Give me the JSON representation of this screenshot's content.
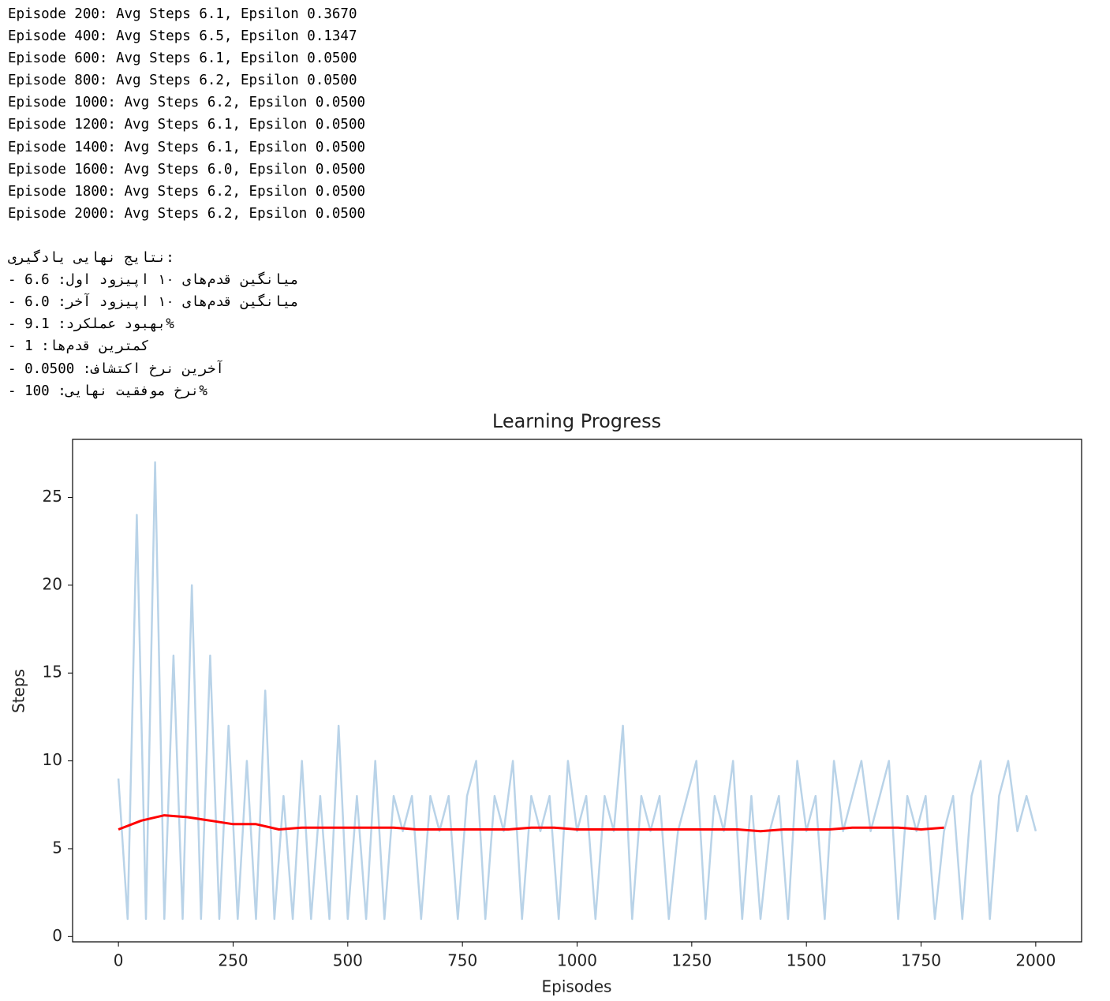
{
  "log": {
    "lines": [
      "Episode 200: Avg Steps 6.1, Epsilon 0.3670",
      "Episode 400: Avg Steps 6.5, Epsilon 0.1347",
      "Episode 600: Avg Steps 6.1, Epsilon 0.0500",
      "Episode 800: Avg Steps 6.2, Epsilon 0.0500",
      "Episode 1000: Avg Steps 6.2, Epsilon 0.0500",
      "Episode 1200: Avg Steps 6.1, Epsilon 0.0500",
      "Episode 1400: Avg Steps 6.1, Epsilon 0.0500",
      "Episode 1600: Avg Steps 6.0, Epsilon 0.0500",
      "Episode 1800: Avg Steps 6.2, Epsilon 0.0500",
      "Episode 2000: Avg Steps 6.2, Epsilon 0.0500"
    ],
    "summary_title": "نتایج نهایی یادگیری:",
    "summary_lines": [
      "- میانگین قدم‌های ۱۰ اپیزود اول: 6.6",
      "- میانگین قدم‌های ۱۰ اپیزود آخر: 6.0",
      "- بهبود عملکرد: 9.1%",
      "- کمترین قدم‌ها: 1",
      "- آخرین نرخ اکتشاف: 0.0500",
      "- نرخ موفقیت نهایی: 100%"
    ]
  },
  "chart_data": {
    "type": "line",
    "title": "Learning Progress",
    "x_label": "Episodes",
    "y_label": "Steps",
    "xlim": [
      -100,
      2100
    ],
    "ylim": [
      -0.3,
      28.3
    ],
    "xticks": [
      0,
      250,
      500,
      750,
      1000,
      1250,
      1500,
      1750,
      2000
    ],
    "yticks": [
      0,
      5,
      10,
      15,
      20,
      25
    ],
    "series": [
      {
        "color": "#b9d3e8",
        "x": [
          0,
          20,
          40,
          60,
          80,
          100,
          120,
          140,
          160,
          180,
          200,
          220,
          240,
          260,
          280,
          300,
          320,
          340,
          360,
          380,
          400,
          420,
          440,
          460,
          480,
          500,
          520,
          540,
          560,
          580,
          600,
          620,
          640,
          660,
          680,
          700,
          720,
          740,
          760,
          780,
          800,
          820,
          840,
          860,
          880,
          900,
          920,
          940,
          960,
          980,
          1000,
          1020,
          1040,
          1060,
          1080,
          1100,
          1120,
          1140,
          1160,
          1180,
          1200,
          1220,
          1240,
          1260,
          1280,
          1300,
          1320,
          1340,
          1360,
          1380,
          1400,
          1420,
          1440,
          1460,
          1480,
          1500,
          1520,
          1540,
          1560,
          1580,
          1600,
          1620,
          1640,
          1660,
          1680,
          1700,
          1720,
          1740,
          1760,
          1780,
          1800,
          1820,
          1840,
          1860,
          1880,
          1900,
          1920,
          1940,
          1960,
          1980,
          2000
        ],
        "values": [
          9,
          1,
          24,
          1,
          27,
          1,
          16,
          1,
          20,
          1,
          16,
          1,
          12,
          1,
          10,
          1,
          14,
          1,
          8,
          1,
          10,
          1,
          8,
          1,
          12,
          1,
          8,
          1,
          10,
          1,
          8,
          6,
          8,
          1,
          8,
          6,
          8,
          1,
          8,
          10,
          1,
          8,
          6,
          10,
          1,
          8,
          6,
          8,
          1,
          10,
          6,
          8,
          1,
          8,
          6,
          12,
          1,
          8,
          6,
          8,
          1,
          6,
          8,
          10,
          1,
          8,
          6,
          10,
          1,
          8,
          1,
          6,
          8,
          1,
          10,
          6,
          8,
          1,
          10,
          6,
          8,
          10,
          6,
          8,
          10,
          1,
          8,
          6,
          8,
          1,
          6,
          8,
          1,
          8,
          10,
          1,
          8,
          10,
          6,
          8,
          6
        ]
      },
      {
        "color": "#ff0000",
        "x": [
          0,
          50,
          100,
          150,
          200,
          250,
          300,
          350,
          400,
          450,
          500,
          550,
          600,
          650,
          700,
          750,
          800,
          850,
          900,
          950,
          1000,
          1050,
          1100,
          1150,
          1200,
          1250,
          1300,
          1350,
          1400,
          1450,
          1500,
          1550,
          1600,
          1650,
          1700,
          1750,
          1800
        ],
        "values": [
          6.1,
          6.6,
          6.9,
          6.8,
          6.6,
          6.4,
          6.4,
          6.1,
          6.2,
          6.2,
          6.2,
          6.2,
          6.2,
          6.1,
          6.1,
          6.1,
          6.1,
          6.1,
          6.2,
          6.2,
          6.1,
          6.1,
          6.1,
          6.1,
          6.1,
          6.1,
          6.1,
          6.1,
          6.0,
          6.1,
          6.1,
          6.1,
          6.2,
          6.2,
          6.2,
          6.1,
          6.2
        ]
      }
    ]
  }
}
